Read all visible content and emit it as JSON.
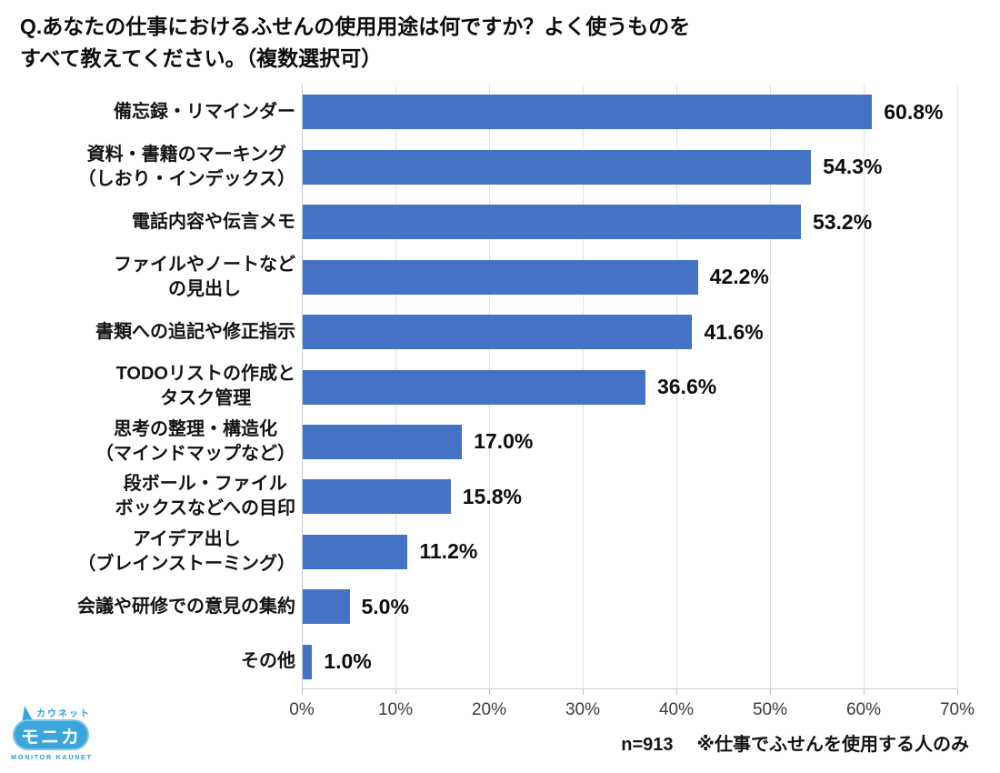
{
  "title": {
    "line1": "Q.あなたの仕事におけるふせんの使用用途は何ですか？よく使うものを",
    "line2": "すべて教えてください。（複数選択可）"
  },
  "chart_data": {
    "type": "bar",
    "orientation": "horizontal",
    "title": "仕事におけるふせんの使用用途",
    "xlabel": "",
    "ylabel": "",
    "xlim": [
      0,
      70
    ],
    "x_ticks": [
      "0%",
      "10%",
      "20%",
      "30%",
      "40%",
      "50%",
      "60%",
      "70%"
    ],
    "grid": true,
    "legend": "none",
    "bar_color": "#4472C4",
    "categories": [
      "備忘録・リマインダー",
      "資料・書籍のマーキング\n（しおり・インデックス）",
      "電話内容や伝言メモ",
      "ファイルやノートなど\nの見出し",
      "書類への追記や修正指示",
      "TODOリストの作成と\nタスク管理",
      "思考の整理・構造化\n（マインドマップなど）",
      "段ボール・ファイル\nボックスなどへの目印",
      "アイデア出し\n（ブレインストーミング）",
      "会議や研修での意見の集約",
      "その他"
    ],
    "values": [
      60.8,
      54.3,
      53.2,
      42.2,
      41.6,
      36.6,
      17.0,
      15.8,
      11.2,
      5.0,
      1.0
    ],
    "value_labels": [
      "60.8%",
      "54.3%",
      "53.2%",
      "42.2%",
      "41.6%",
      "36.6%",
      "17.0%",
      "15.8%",
      "11.2%",
      "5.0%",
      "1.0%"
    ]
  },
  "footer": {
    "n_label": "n=913",
    "note": "※仕事でふせんを使用する人のみ"
  },
  "logo": {
    "top_text": "カウネット",
    "main_text": "モニカ",
    "bottom_text": "MONITOR KAUNET",
    "color_main": "#3AA6DC",
    "color_text": "#2E9FD6"
  }
}
